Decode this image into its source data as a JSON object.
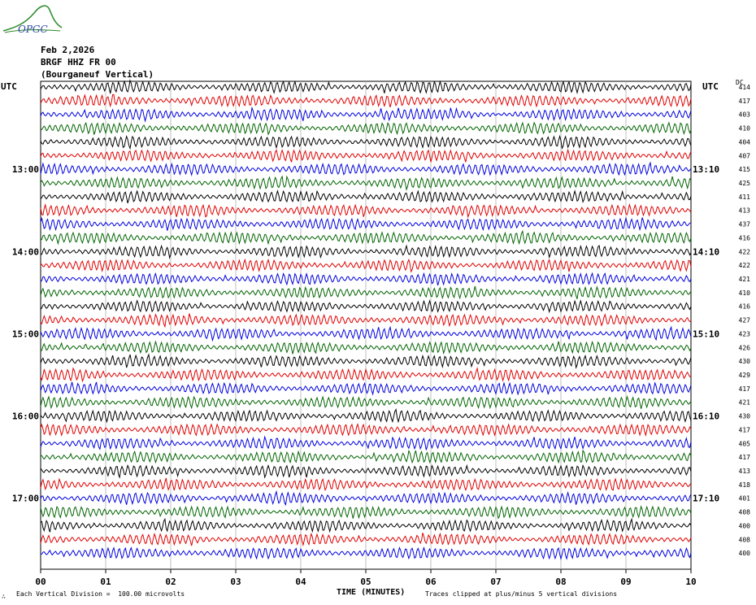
{
  "header": {
    "logo_text": "OPGC",
    "date": "Feb 2,2026",
    "station": "BRGF HHZ FR 00",
    "location": "(Bourganeuf Vertical)"
  },
  "chart_data": {
    "type": "line",
    "title": "Feb 2,2026",
    "subtitle": "BRGF HHZ FR 00 (Bourganeuf Vertical)",
    "left_axis_label": "UTC",
    "right_axis_label": "UTC",
    "dc_label": "DC",
    "xlabel": "TIME (MINUTES)",
    "x_ticks": [
      "00",
      "01",
      "02",
      "03",
      "04",
      "05",
      "06",
      "07",
      "08",
      "09",
      "10"
    ],
    "xlim": [
      0,
      10
    ],
    "left_time_labels": [
      {
        "trace": 6,
        "text": "13:00"
      },
      {
        "trace": 12,
        "text": "14:00"
      },
      {
        "trace": 18,
        "text": "15:00"
      },
      {
        "trace": 24,
        "text": "16:00"
      },
      {
        "trace": 30,
        "text": "17:00"
      }
    ],
    "right_time_labels": [
      {
        "trace": 6,
        "text": "13:10"
      },
      {
        "trace": 12,
        "text": "14:10"
      },
      {
        "trace": 18,
        "text": "15:10"
      },
      {
        "trace": 24,
        "text": "16:10"
      },
      {
        "trace": 30,
        "text": "17:10"
      }
    ],
    "dc_offsets": [
      414,
      417,
      403,
      410,
      404,
      407,
      415,
      425,
      411,
      413,
      437,
      416,
      422,
      422,
      421,
      410,
      416,
      427,
      423,
      426,
      430,
      429,
      417,
      421,
      430,
      417,
      405,
      417,
      413,
      418,
      401,
      408,
      400,
      408,
      400
    ],
    "trace_colors": [
      "#000000",
      "#e00000",
      "#0000e0",
      "#006400"
    ],
    "scale_note": "Each Vertical Division =  100.00 microvolts",
    "clip_note": "Traces clipped at plus/minus 5 vertical divisions",
    "grid": true
  }
}
